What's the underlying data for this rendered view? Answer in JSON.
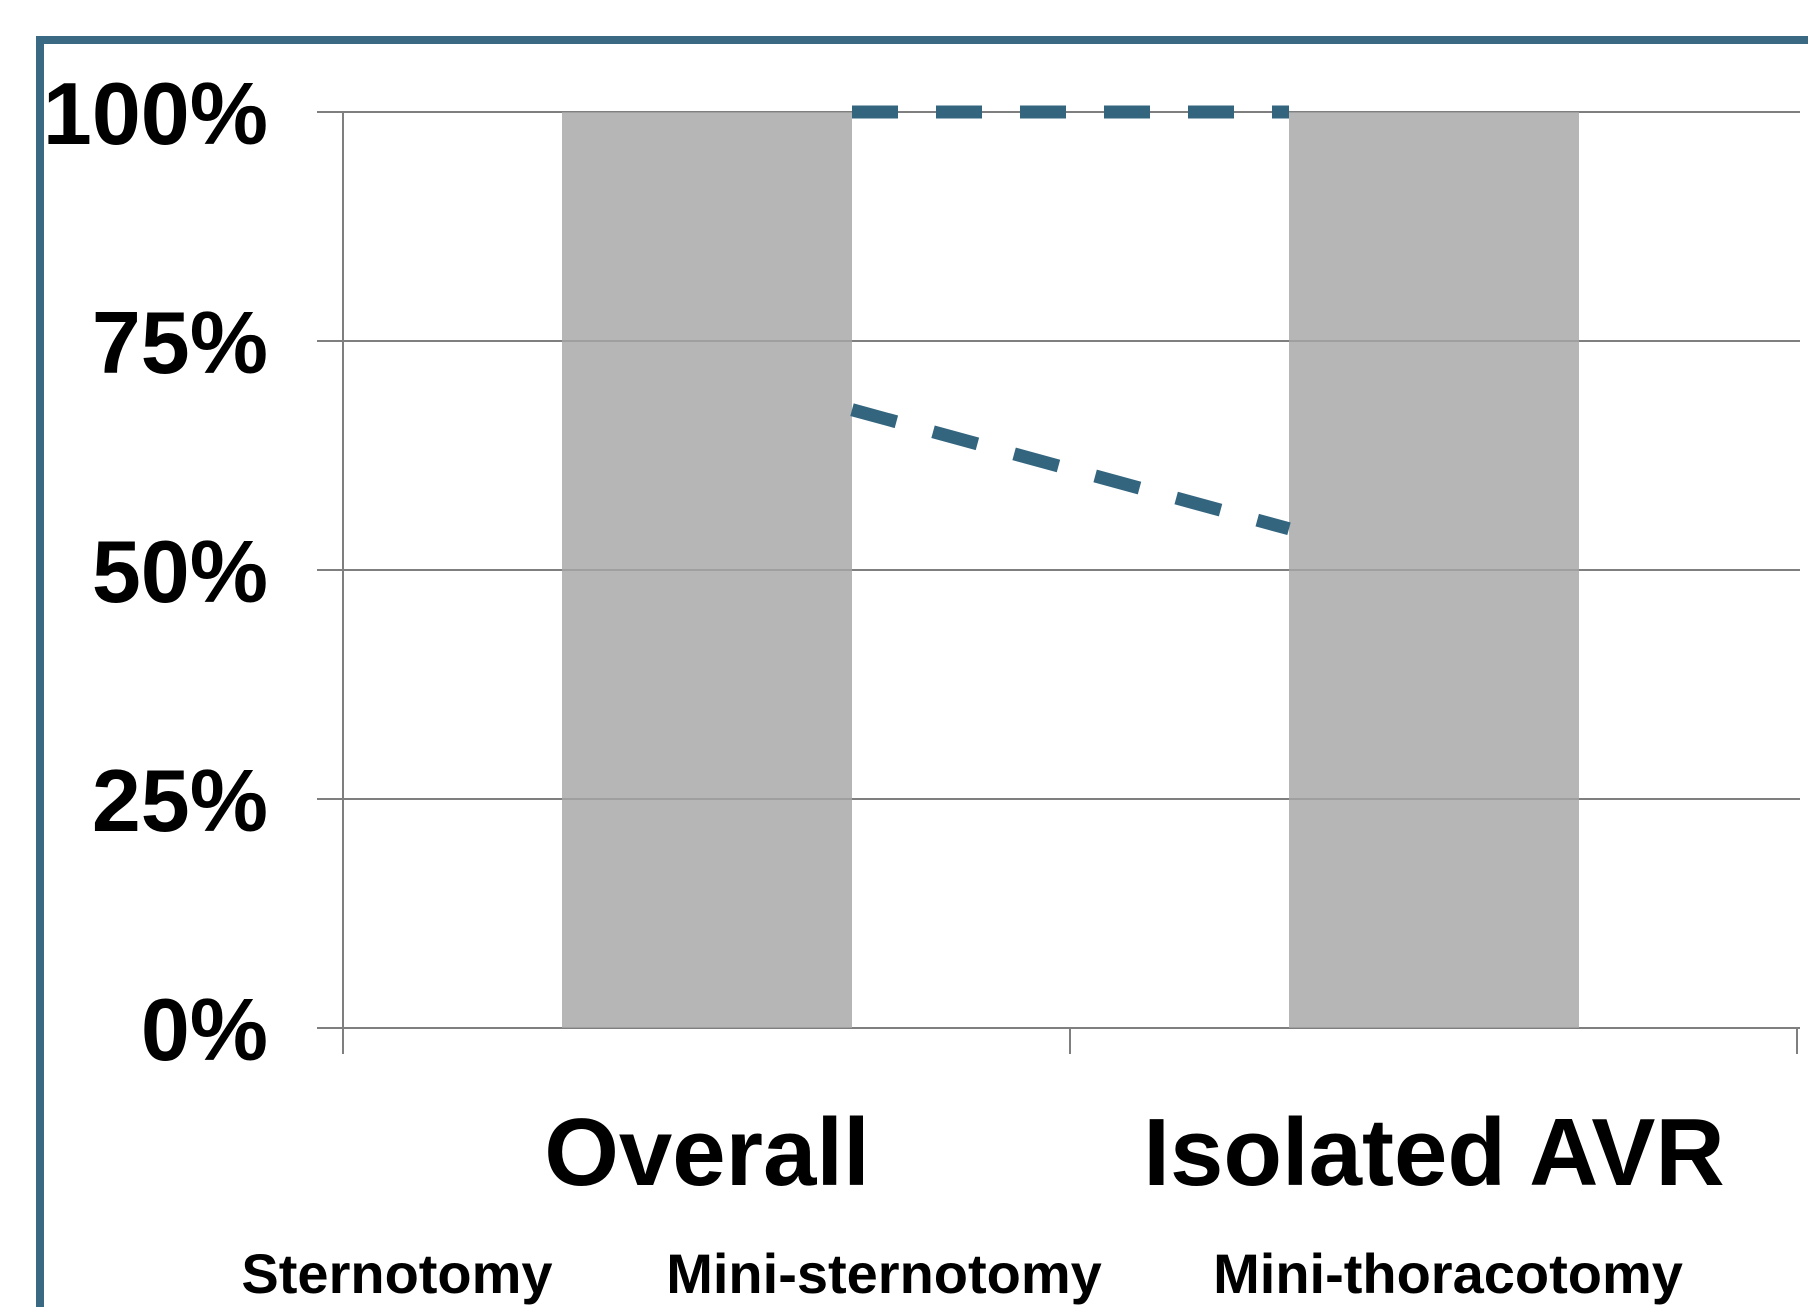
{
  "colors": {
    "frame": "#3a6a83",
    "bar": "#a6a6a6",
    "line": "#33657f",
    "grid": "#7f7f7f"
  },
  "chart_data": {
    "type": "bar",
    "title": "",
    "xlabel": "",
    "ylabel": "",
    "ylim": [
      0,
      100
    ],
    "yticks": [
      {
        "value": 0,
        "label": "0%"
      },
      {
        "value": 25,
        "label": "25%"
      },
      {
        "value": 50,
        "label": "50%"
      },
      {
        "value": 75,
        "label": "75%"
      },
      {
        "value": 100,
        "label": "100%"
      }
    ],
    "categories": [
      "Overall",
      "Isolated AVR"
    ],
    "series": [
      {
        "name": "",
        "values": [
          100,
          100
        ]
      }
    ],
    "connectors": [
      {
        "style": "dashed",
        "values": [
          100,
          100
        ]
      },
      {
        "style": "dashed",
        "values": [
          67.5,
          54.5
        ]
      }
    ],
    "legend": {
      "position": "bottom",
      "labels": [
        "Sternotomy",
        "Mini-sternotomy",
        "Mini-thoracotomy"
      ]
    },
    "grid": true
  }
}
